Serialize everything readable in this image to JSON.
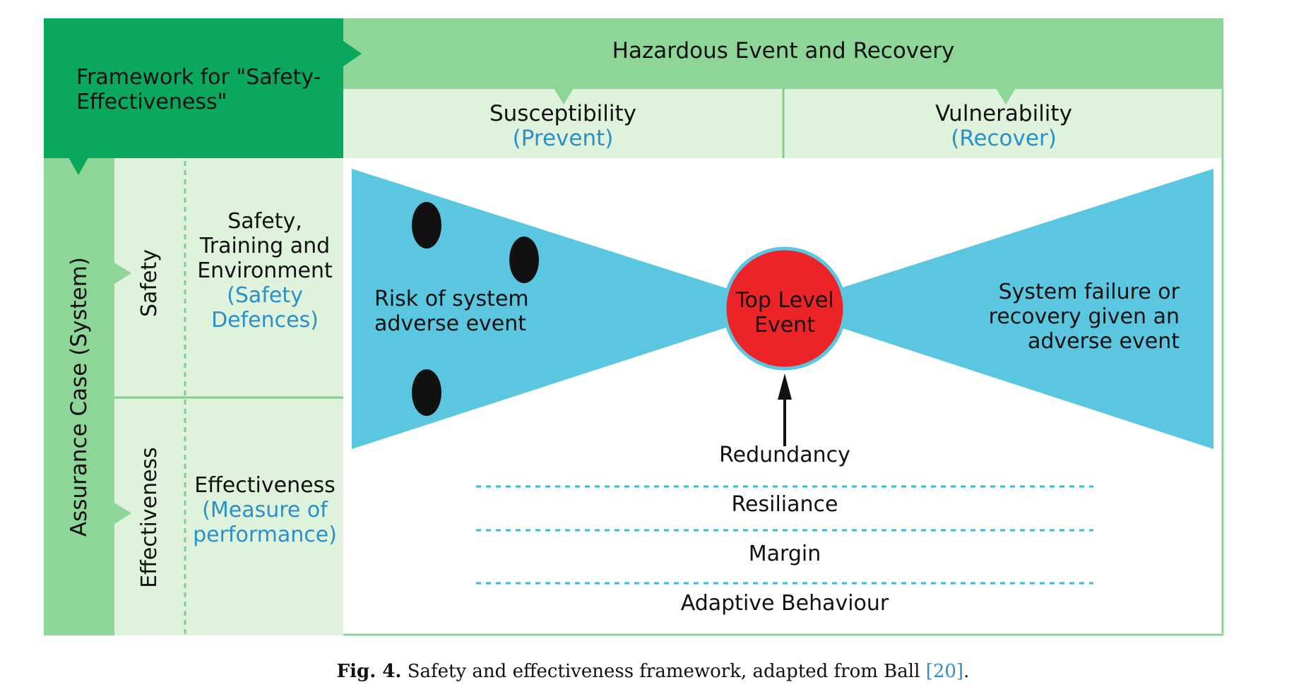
{
  "framework_title": "Framework for \"Safety-Effectiveness\"",
  "header": {
    "title": "Hazardous Event and Recovery",
    "susceptibility": {
      "label": "Susceptibility",
      "sub": "(Prevent)"
    },
    "vulnerability": {
      "label": "Vulnerability",
      "sub": "(Recover)"
    }
  },
  "assurance_case": "Assurance Case (System)",
  "rows": {
    "safety": {
      "label": "Safety",
      "desc": [
        "Safety,",
        "Training and",
        "Environment"
      ],
      "sub": [
        "(Safety",
        "Defences)"
      ]
    },
    "effectiveness": {
      "label": "Effectiveness",
      "desc": [
        "Effectiveness"
      ],
      "sub": [
        "(Measure of",
        "performance)"
      ]
    }
  },
  "bowtie": {
    "left_text": [
      "Risk of system",
      "adverse event"
    ],
    "center_text": [
      "Top Level",
      "Event"
    ],
    "right_text": [
      "System failure or",
      "recovery given an",
      "adverse event"
    ]
  },
  "layers": [
    "Redundancy",
    "Resiliance",
    "Margin",
    "Adaptive Behaviour"
  ],
  "caption": {
    "fig": "Fig. 4.",
    "text": "Safety and effectiveness framework, adapted from Ball",
    "cite": "[20]",
    "end": "."
  },
  "colors": {
    "dark_green": "#0aa85e",
    "mid_green": "#8ed698",
    "light_green": "#dff2db",
    "line_green": "#7fd08a",
    "bowtie_blue": "#5bc6e0",
    "top_event_red": "#ec2427",
    "text_blue": "#2b8fc9"
  }
}
